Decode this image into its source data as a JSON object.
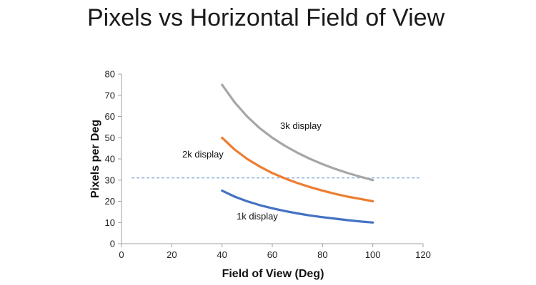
{
  "chart_data": {
    "type": "line",
    "title": "Pixels vs Horizontal Field of View",
    "xlabel": "Field of View (Deg)",
    "ylabel": "Pixels per Deg",
    "xlim": [
      0,
      120
    ],
    "ylim": [
      0,
      80
    ],
    "x_ticks": [
      0,
      20,
      40,
      60,
      80,
      100,
      120
    ],
    "y_ticks": [
      0,
      10,
      20,
      30,
      40,
      50,
      60,
      70,
      80
    ],
    "grid": false,
    "legend": "none",
    "reference_line": {
      "y": 31,
      "style": "dashed",
      "color": "#5b8fc7"
    },
    "series": [
      {
        "name": "3k display",
        "color": "#a6a6a6",
        "x": [
          40,
          45,
          50,
          55,
          60,
          65,
          70,
          75,
          80,
          85,
          90,
          95,
          100
        ],
        "y": [
          75,
          66.7,
          60,
          54.5,
          50,
          46.2,
          42.9,
          40,
          37.5,
          35.3,
          33.3,
          31.6,
          30
        ]
      },
      {
        "name": "2k display",
        "color": "#ed7d31",
        "x": [
          40,
          45,
          50,
          55,
          60,
          65,
          70,
          75,
          80,
          85,
          90,
          95,
          100
        ],
        "y": [
          50,
          44.4,
          40,
          36.4,
          33.3,
          30.8,
          28.6,
          26.7,
          25,
          23.5,
          22.2,
          21.1,
          20
        ]
      },
      {
        "name": "1k display",
        "color": "#4472c4",
        "x": [
          40,
          45,
          50,
          55,
          60,
          65,
          70,
          75,
          80,
          85,
          90,
          95,
          100
        ],
        "y": [
          25,
          22.2,
          20,
          18.2,
          16.7,
          15.4,
          14.3,
          13.3,
          12.5,
          11.8,
          11.1,
          10.5,
          10
        ]
      }
    ]
  }
}
